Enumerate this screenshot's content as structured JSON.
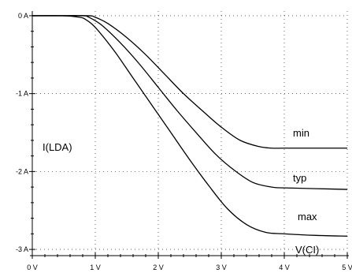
{
  "chart_data": {
    "type": "line",
    "xlabel": "V(CI)",
    "ylabel": "I(LDA)",
    "xlim": [
      0,
      5
    ],
    "ylim": [
      -3.08,
      0.06
    ],
    "x_ticks": [
      0,
      1,
      2,
      3,
      4,
      5
    ],
    "x_tick_labels": [
      "0 V",
      "1 V",
      "2 V",
      "3 V",
      "4 V",
      "5 V"
    ],
    "y_ticks": [
      0,
      -1,
      -2,
      -3
    ],
    "y_tick_labels": [
      "0 A",
      "-1 A",
      "-2 A",
      "-3 A"
    ],
    "grid": true,
    "series": [
      {
        "name": "min",
        "x": [
          0,
          0.5,
          0.9,
          1.0,
          1.2,
          1.5,
          1.8,
          2.1,
          2.4,
          2.7,
          3.0,
          3.3,
          3.6,
          3.8,
          4.0,
          4.5,
          5.0
        ],
        "y": [
          0,
          0,
          0,
          -0.02,
          -0.1,
          -0.28,
          -0.5,
          -0.75,
          -1.0,
          -1.22,
          -1.43,
          -1.6,
          -1.68,
          -1.7,
          -1.7,
          -1.7,
          -1.7
        ]
      },
      {
        "name": "typ",
        "x": [
          0,
          0.5,
          0.8,
          0.9,
          1.1,
          1.4,
          1.7,
          2.0,
          2.3,
          2.6,
          2.9,
          3.2,
          3.5,
          3.8,
          4.0,
          4.5,
          5.0
        ],
        "y": [
          0,
          0,
          0,
          -0.02,
          -0.12,
          -0.35,
          -0.62,
          -0.92,
          -1.22,
          -1.5,
          -1.77,
          -1.98,
          -2.14,
          -2.2,
          -2.21,
          -2.22,
          -2.23
        ]
      },
      {
        "name": "max",
        "x": [
          0,
          0.5,
          0.75,
          0.85,
          1.0,
          1.3,
          1.6,
          1.9,
          2.2,
          2.5,
          2.8,
          3.1,
          3.4,
          3.7,
          4.0,
          4.5,
          5.0
        ],
        "y": [
          0,
          0,
          -0.02,
          -0.05,
          -0.15,
          -0.45,
          -0.8,
          -1.15,
          -1.5,
          -1.85,
          -2.18,
          -2.48,
          -2.68,
          -2.78,
          -2.8,
          -2.82,
          -2.83
        ]
      }
    ]
  }
}
